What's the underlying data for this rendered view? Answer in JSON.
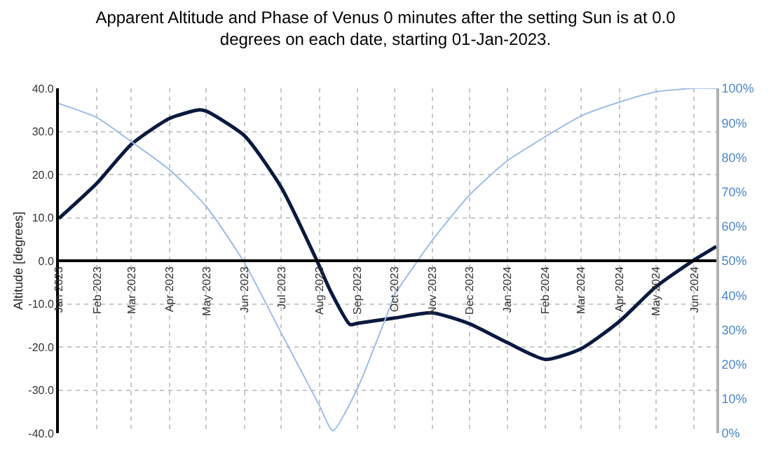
{
  "chart_data": {
    "type": "line",
    "title": "Apparent Altitude and Phase of Venus 0 minutes after the setting Sun is at 0.0 degrees on each date, starting 01-Jan-2023.",
    "ylabel": "Altitude [degrees]",
    "x": [
      "2023-01-01",
      "2023-02-01",
      "2023-03-01",
      "2023-04-01",
      "2023-04-25",
      "2023-05-01",
      "2023-06-01",
      "2023-07-01",
      "2023-07-30",
      "2023-08-10",
      "2023-08-26",
      "2023-09-01",
      "2023-10-01",
      "2023-11-01",
      "2023-12-01",
      "2024-01-01",
      "2024-02-01",
      "2024-03-01",
      "2024-04-01",
      "2024-05-01",
      "2024-06-01",
      "2024-06-19"
    ],
    "series": [
      {
        "color": "#0a1a3f",
        "values": [
          9.8,
          18,
          27,
          33,
          35,
          34.7,
          29,
          17,
          0,
          -7,
          -14.8,
          -14.5,
          -13.3,
          -12.1,
          -14.6,
          -19,
          -22.9,
          -20.4,
          -14.1,
          -6,
          0.2,
          3.3
        ]
      },
      {
        "color": "#9dbde6",
        "axis": "y2",
        "x": [
          "2023-01-01",
          "2023-02-01",
          "2023-03-01",
          "2023-04-01",
          "2023-05-01",
          "2023-06-01",
          "2023-07-01",
          "2023-08-01",
          "2023-08-12",
          "2023-09-01",
          "2023-09-17",
          "2023-09-29",
          "2023-10-01",
          "2023-10-20",
          "2023-11-01",
          "2023-12-01",
          "2024-01-01",
          "2024-02-01",
          "2024-03-01",
          "2024-04-01",
          "2024-05-01",
          "2024-06-01",
          "2024-06-19"
        ],
        "values": [
          95.6,
          91.5,
          84.5,
          76.4,
          65.7,
          49.4,
          29,
          8,
          0.7,
          13,
          27,
          38,
          40,
          50,
          56,
          69,
          79,
          86,
          92,
          96,
          99,
          100,
          100
        ]
      }
    ],
    "xlim": [
      "2023-01-01",
      "2024-06-19"
    ],
    "xticks": [
      {
        "value": "2023-01-01",
        "label": "Jan 2023"
      },
      {
        "value": "2023-02-01",
        "label": "Feb 2023"
      },
      {
        "value": "2023-03-01",
        "label": "Mar 2023"
      },
      {
        "value": "2023-04-01",
        "label": "Apr 2023"
      },
      {
        "value": "2023-05-01",
        "label": "May 2023"
      },
      {
        "value": "2023-06-01",
        "label": "Jun 2023"
      },
      {
        "value": "2023-07-01",
        "label": "Jul 2023"
      },
      {
        "value": "2023-08-01",
        "label": "Aug 2023"
      },
      {
        "value": "2023-09-01",
        "label": "Sep 2023"
      },
      {
        "value": "2023-10-01",
        "label": "Oct 2023"
      },
      {
        "value": "2023-11-01",
        "label": "Nov 2023"
      },
      {
        "value": "2023-12-01",
        "label": "Dec 2023"
      },
      {
        "value": "2024-01-01",
        "label": "Jan 2024"
      },
      {
        "value": "2024-02-01",
        "label": "Feb 2024"
      },
      {
        "value": "2024-03-01",
        "label": "Mar 2024"
      },
      {
        "value": "2024-04-01",
        "label": "Apr 2024"
      },
      {
        "value": "2024-05-01",
        "label": "May 2024"
      },
      {
        "value": "2024-06-01",
        "label": "Jun 2024"
      }
    ],
    "ylim": [
      -40,
      40
    ],
    "yticks": [
      {
        "value": -40,
        "label": "-40.0"
      },
      {
        "value": -30,
        "label": "-30.0"
      },
      {
        "value": -20,
        "label": "-20.0"
      },
      {
        "value": -10,
        "label": "-10.0"
      },
      {
        "value": 0,
        "label": "0.0"
      },
      {
        "value": 10,
        "label": "10.0"
      },
      {
        "value": 20,
        "label": "20.0"
      },
      {
        "value": 30,
        "label": "30.0"
      },
      {
        "value": 40,
        "label": "40.0"
      }
    ],
    "y2lim": [
      0,
      100
    ],
    "y2ticks": [
      {
        "value": 0,
        "label": "0%"
      },
      {
        "value": 10,
        "label": "10%"
      },
      {
        "value": 20,
        "label": "20%"
      },
      {
        "value": 30,
        "label": "30%"
      },
      {
        "value": 40,
        "label": "40%"
      },
      {
        "value": 50,
        "label": "50%"
      },
      {
        "value": 60,
        "label": "60%"
      },
      {
        "value": 70,
        "label": "70%"
      },
      {
        "value": 80,
        "label": "80%"
      },
      {
        "value": 90,
        "label": "90%"
      },
      {
        "value": 100,
        "label": "100%"
      }
    ],
    "grid": true,
    "marker": "none",
    "line_style": "solid"
  }
}
